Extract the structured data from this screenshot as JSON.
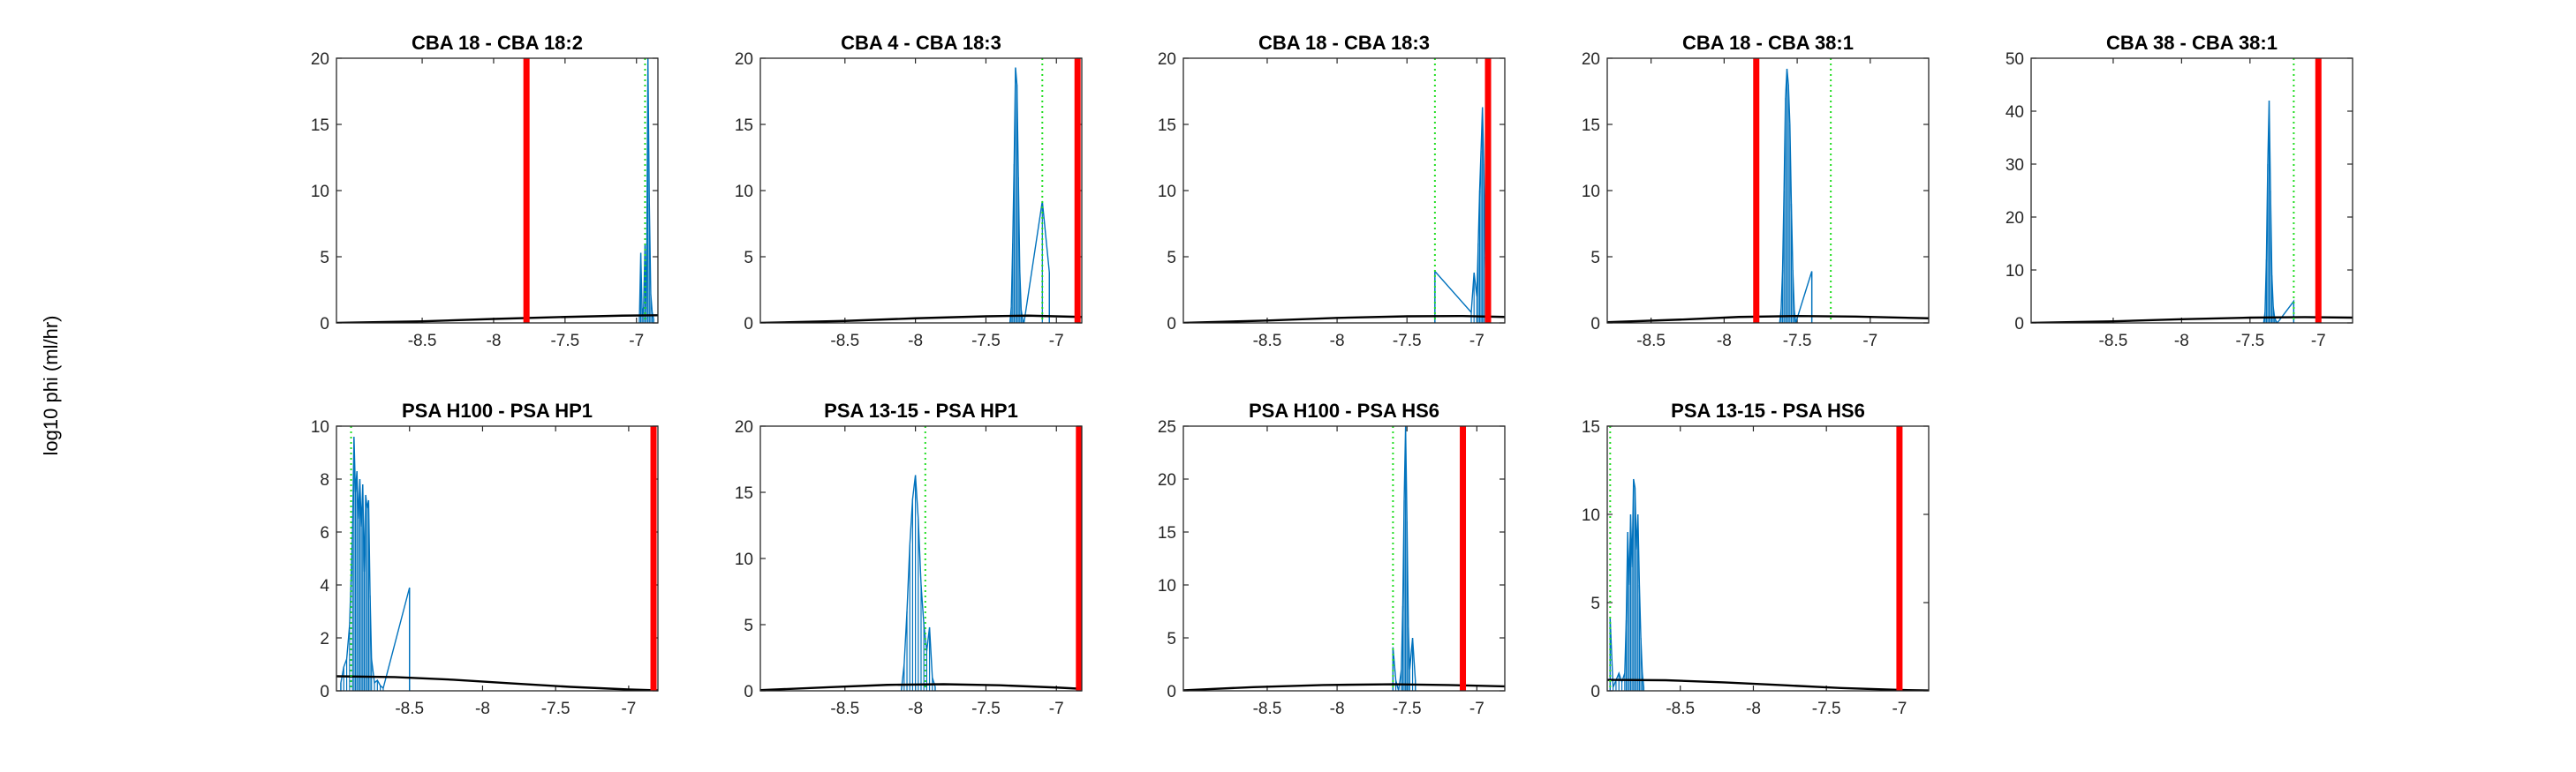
{
  "figure": {
    "ylabel": "log10 phi (ml/hr)"
  },
  "chart_data": [
    {
      "type": "line",
      "title": "CBA 18 - CBA 18:2",
      "xlim": [
        -9.1,
        -6.85
      ],
      "ylim": [
        0,
        20
      ],
      "xticks": [
        -8.5,
        -8,
        -7.5,
        -7
      ],
      "xtick_labels": [
        "-8.5",
        "-8",
        "-7.5",
        "-7"
      ],
      "yticks": [
        0,
        5,
        10,
        15,
        20
      ],
      "ytick_labels": [
        "0",
        "5",
        "10",
        "15",
        "20"
      ],
      "red_line_x": -7.77,
      "green_dotted_x": [
        -6.94
      ],
      "histogram": {
        "x": [
          -6.98,
          -6.97,
          -6.96,
          -6.95,
          -6.94,
          -6.93,
          -6.92,
          -6.91,
          -6.9,
          -6.89,
          -6.88
        ],
        "y": [
          0,
          5.3,
          0.6,
          1.2,
          6,
          0.8,
          20,
          9,
          2.2,
          0.8,
          0.3
        ]
      },
      "density_curve": {
        "x": [
          -9.1,
          -8.5,
          -8,
          -7.5,
          -7.1,
          -6.85
        ],
        "y": [
          0,
          0.12,
          0.3,
          0.45,
          0.55,
          0.58
        ]
      }
    },
    {
      "type": "line",
      "title": "CBA 4 - CBA 18:3",
      "xlim": [
        -9.1,
        -6.82
      ],
      "ylim": [
        0,
        20
      ],
      "xticks": [
        -8.5,
        -8,
        -7.5,
        -7
      ],
      "xtick_labels": [
        "-8.5",
        "-8",
        "-7.5",
        "-7"
      ],
      "yticks": [
        0,
        5,
        10,
        15,
        20
      ],
      "ytick_labels": [
        "0",
        "5",
        "10",
        "15",
        "20"
      ],
      "red_line_x": -6.85,
      "green_dotted_x": [
        -7.1
      ],
      "histogram": {
        "x": [
          -7.33,
          -7.32,
          -7.31,
          -7.3,
          -7.29,
          -7.28,
          -7.27,
          -7.26,
          -7.25,
          -7.24,
          -7.23,
          -7.1,
          -7.05
        ],
        "y": [
          0,
          1.2,
          6,
          12,
          19.3,
          18,
          11,
          4,
          1,
          0.3,
          0,
          9.2,
          3.8
        ]
      },
      "density_curve": {
        "x": [
          -9.1,
          -8.5,
          -8,
          -7.5,
          -7.2,
          -6.82
        ],
        "y": [
          0,
          0.15,
          0.35,
          0.5,
          0.55,
          0.45
        ]
      }
    },
    {
      "type": "line",
      "title": "CBA 18 - CBA 18:3",
      "xlim": [
        -9.1,
        -6.8
      ],
      "ylim": [
        0,
        20
      ],
      "xticks": [
        -8.5,
        -8,
        -7.5,
        -7
      ],
      "xtick_labels": [
        "-8.5",
        "-8",
        "-7.5",
        "-7"
      ],
      "yticks": [
        0,
        5,
        10,
        15,
        20
      ],
      "ytick_labels": [
        "0",
        "5",
        "10",
        "15",
        "20"
      ],
      "red_line_x": -6.92,
      "green_dotted_x": [
        -7.3
      ],
      "histogram": {
        "x": [
          -7.3,
          -7.04,
          -7.02,
          -7.0,
          -6.99,
          -6.98,
          -6.97,
          -6.96,
          -6.95,
          -6.94,
          -6.93
        ],
        "y": [
          3.9,
          0.8,
          3.8,
          2,
          6,
          10,
          13,
          16.3,
          12,
          5,
          1
        ]
      },
      "density_curve": {
        "x": [
          -9.1,
          -8.5,
          -8,
          -7.5,
          -7.1,
          -6.8
        ],
        "y": [
          0,
          0.18,
          0.38,
          0.5,
          0.52,
          0.45
        ]
      }
    },
    {
      "type": "line",
      "title": "CBA 18 - CBA 38:1",
      "xlim": [
        -8.8,
        -6.6
      ],
      "ylim": [
        0,
        20
      ],
      "xticks": [
        -8.5,
        -8,
        -7.5,
        -7
      ],
      "xtick_labels": [
        "-8.5",
        "-8",
        "-7.5",
        "-7"
      ],
      "yticks": [
        0,
        5,
        10,
        15,
        20
      ],
      "ytick_labels": [
        "0",
        "5",
        "10",
        "15",
        "20"
      ],
      "red_line_x": -7.78,
      "green_dotted_x": [
        -7.27
      ],
      "histogram": {
        "x": [
          -7.62,
          -7.61,
          -7.6,
          -7.59,
          -7.58,
          -7.57,
          -7.56,
          -7.55,
          -7.54,
          -7.53,
          -7.52,
          -7.51,
          -7.4
        ],
        "y": [
          0,
          1,
          4,
          10,
          17,
          19.2,
          18,
          15,
          9,
          4,
          1,
          0,
          3.9
        ]
      },
      "density_curve": {
        "x": [
          -8.8,
          -8.3,
          -7.9,
          -7.5,
          -7.1,
          -6.6
        ],
        "y": [
          0.05,
          0.25,
          0.45,
          0.52,
          0.48,
          0.35
        ]
      }
    },
    {
      "type": "line",
      "title": "CBA 38 - CBA 38:1",
      "xlim": [
        -9.1,
        -6.75
      ],
      "ylim": [
        0,
        50
      ],
      "xticks": [
        -8.5,
        -8,
        -7.5,
        -7
      ],
      "xtick_labels": [
        "-8.5",
        "-8",
        "-7.5",
        "-7"
      ],
      "yticks": [
        0,
        10,
        20,
        30,
        40,
        50
      ],
      "ytick_labels": [
        "0",
        "10",
        "20",
        "30",
        "40",
        "50"
      ],
      "red_line_x": -7.0,
      "green_dotted_x": [
        -7.18
      ],
      "histogram": {
        "x": [
          -7.4,
          -7.39,
          -7.38,
          -7.37,
          -7.36,
          -7.35,
          -7.34,
          -7.33,
          -7.32,
          -7.31,
          -7.3,
          -7.18
        ],
        "y": [
          0,
          2,
          12,
          30,
          42,
          25,
          9,
          3,
          1,
          0.4,
          0,
          4.1
        ]
      },
      "density_curve": {
        "x": [
          -9.1,
          -8.5,
          -8,
          -7.5,
          -7.1,
          -6.75
        ],
        "y": [
          0,
          0.3,
          0.7,
          1.0,
          1.1,
          1.0
        ]
      }
    },
    {
      "type": "line",
      "title": "PSA H100 - PSA HP1",
      "xlim": [
        -9.0,
        -6.8
      ],
      "ylim": [
        0,
        10
      ],
      "xticks": [
        -8.5,
        -8,
        -7.5,
        -7
      ],
      "xtick_labels": [
        "-8.5",
        "-8",
        "-7.5",
        "-7"
      ],
      "yticks": [
        0,
        2,
        4,
        6,
        8,
        10
      ],
      "ytick_labels": [
        "0",
        "2",
        "4",
        "6",
        "8",
        "10"
      ],
      "red_line_x": -6.83,
      "green_dotted_x": [
        -8.9
      ],
      "histogram": {
        "x": [
          -8.97,
          -8.95,
          -8.93,
          -8.91,
          -8.89,
          -8.88,
          -8.87,
          -8.86,
          -8.85,
          -8.84,
          -8.83,
          -8.82,
          -8.81,
          -8.8,
          -8.79,
          -8.78,
          -8.77,
          -8.76,
          -8.74,
          -8.72,
          -8.7,
          -8.68,
          -8.5
        ],
        "y": [
          0.3,
          0.9,
          1.2,
          2.5,
          6,
          9.6,
          7.5,
          8.3,
          6.5,
          8,
          6.2,
          7.8,
          4.5,
          7.4,
          6.9,
          7.2,
          3.6,
          1.2,
          0.3,
          0.4,
          0.2,
          0.1,
          3.9
        ]
      },
      "density_curve": {
        "x": [
          -9.0,
          -8.6,
          -8.2,
          -7.8,
          -7.4,
          -7.0,
          -6.8
        ],
        "y": [
          0.55,
          0.52,
          0.42,
          0.28,
          0.15,
          0.05,
          0.02
        ]
      }
    },
    {
      "type": "line",
      "title": "PSA 13-15 - PSA HP1",
      "xlim": [
        -9.1,
        -6.82
      ],
      "ylim": [
        0,
        20
      ],
      "xticks": [
        -8.5,
        -8,
        -7.5,
        -7
      ],
      "xtick_labels": [
        "-8.5",
        "-8",
        "-7.5",
        "-7"
      ],
      "yticks": [
        0,
        5,
        10,
        15,
        20
      ],
      "ytick_labels": [
        "0",
        "5",
        "10",
        "15",
        "20"
      ],
      "red_line_x": -6.84,
      "green_dotted_x": [
        -7.93
      ],
      "histogram": {
        "x": [
          -8.1,
          -8.08,
          -8.06,
          -8.04,
          -8.02,
          -8.0,
          -7.98,
          -7.96,
          -7.94,
          -7.92,
          -7.9,
          -7.88,
          -7.86
        ],
        "y": [
          0,
          2,
          6,
          11,
          14.5,
          16.3,
          13,
          8,
          5,
          3,
          4.8,
          1,
          0.3
        ]
      },
      "density_curve": {
        "x": [
          -9.1,
          -8.6,
          -8.2,
          -7.8,
          -7.4,
          -7.0,
          -6.82
        ],
        "y": [
          0.05,
          0.28,
          0.45,
          0.5,
          0.42,
          0.25,
          0.15
        ]
      }
    },
    {
      "type": "line",
      "title": "PSA H100 - PSA HS6",
      "xlim": [
        -9.1,
        -6.8
      ],
      "ylim": [
        0,
        25
      ],
      "xticks": [
        -8.5,
        -8,
        -7.5,
        -7
      ],
      "xtick_labels": [
        "-8.5",
        "-8",
        "-7.5",
        "-7"
      ],
      "yticks": [
        0,
        5,
        10,
        15,
        20,
        25
      ],
      "ytick_labels": [
        "0",
        "5",
        "10",
        "15",
        "20",
        "25"
      ],
      "red_line_x": -7.1,
      "green_dotted_x": [
        -7.6
      ],
      "histogram": {
        "x": [
          -7.6,
          -7.58,
          -7.56,
          -7.54,
          -7.53,
          -7.52,
          -7.51,
          -7.5,
          -7.49,
          -7.48,
          -7.46,
          -7.44
        ],
        "y": [
          4.1,
          1,
          0,
          2,
          8,
          18,
          25,
          16,
          6,
          2,
          5,
          1
        ]
      },
      "density_curve": {
        "x": [
          -9.1,
          -8.6,
          -8.1,
          -7.6,
          -7.2,
          -6.8
        ],
        "y": [
          0.05,
          0.35,
          0.55,
          0.62,
          0.55,
          0.42
        ]
      }
    },
    {
      "type": "line",
      "title": "PSA 13-15 - PSA HS6",
      "xlim": [
        -9.0,
        -6.8
      ],
      "ylim": [
        0,
        15
      ],
      "xticks": [
        -8.5,
        -8,
        -7.5,
        -7
      ],
      "xtick_labels": [
        "-8.5",
        "-8",
        "-7.5",
        "-7"
      ],
      "yticks": [
        0,
        5,
        10,
        15
      ],
      "ytick_labels": [
        "0",
        "5",
        "10",
        "15"
      ],
      "red_line_x": -7.0,
      "green_dotted_x": [
        -8.98
      ],
      "histogram": {
        "x": [
          -8.98,
          -8.96,
          -8.94,
          -8.92,
          -8.9,
          -8.88,
          -8.87,
          -8.86,
          -8.85,
          -8.84,
          -8.83,
          -8.82,
          -8.81,
          -8.8,
          -8.79,
          -8.78,
          -8.77,
          -8.76,
          -8.75
        ],
        "y": [
          4.1,
          0.2,
          0.6,
          1,
          0.5,
          1,
          4,
          9,
          6,
          10,
          7,
          12,
          11.5,
          8,
          10,
          6,
          3,
          1,
          0.2
        ]
      },
      "density_curve": {
        "x": [
          -9.0,
          -8.6,
          -8.2,
          -7.8,
          -7.4,
          -7.0,
          -6.8
        ],
        "y": [
          0.62,
          0.6,
          0.48,
          0.32,
          0.16,
          0.05,
          0.02
        ]
      }
    }
  ]
}
